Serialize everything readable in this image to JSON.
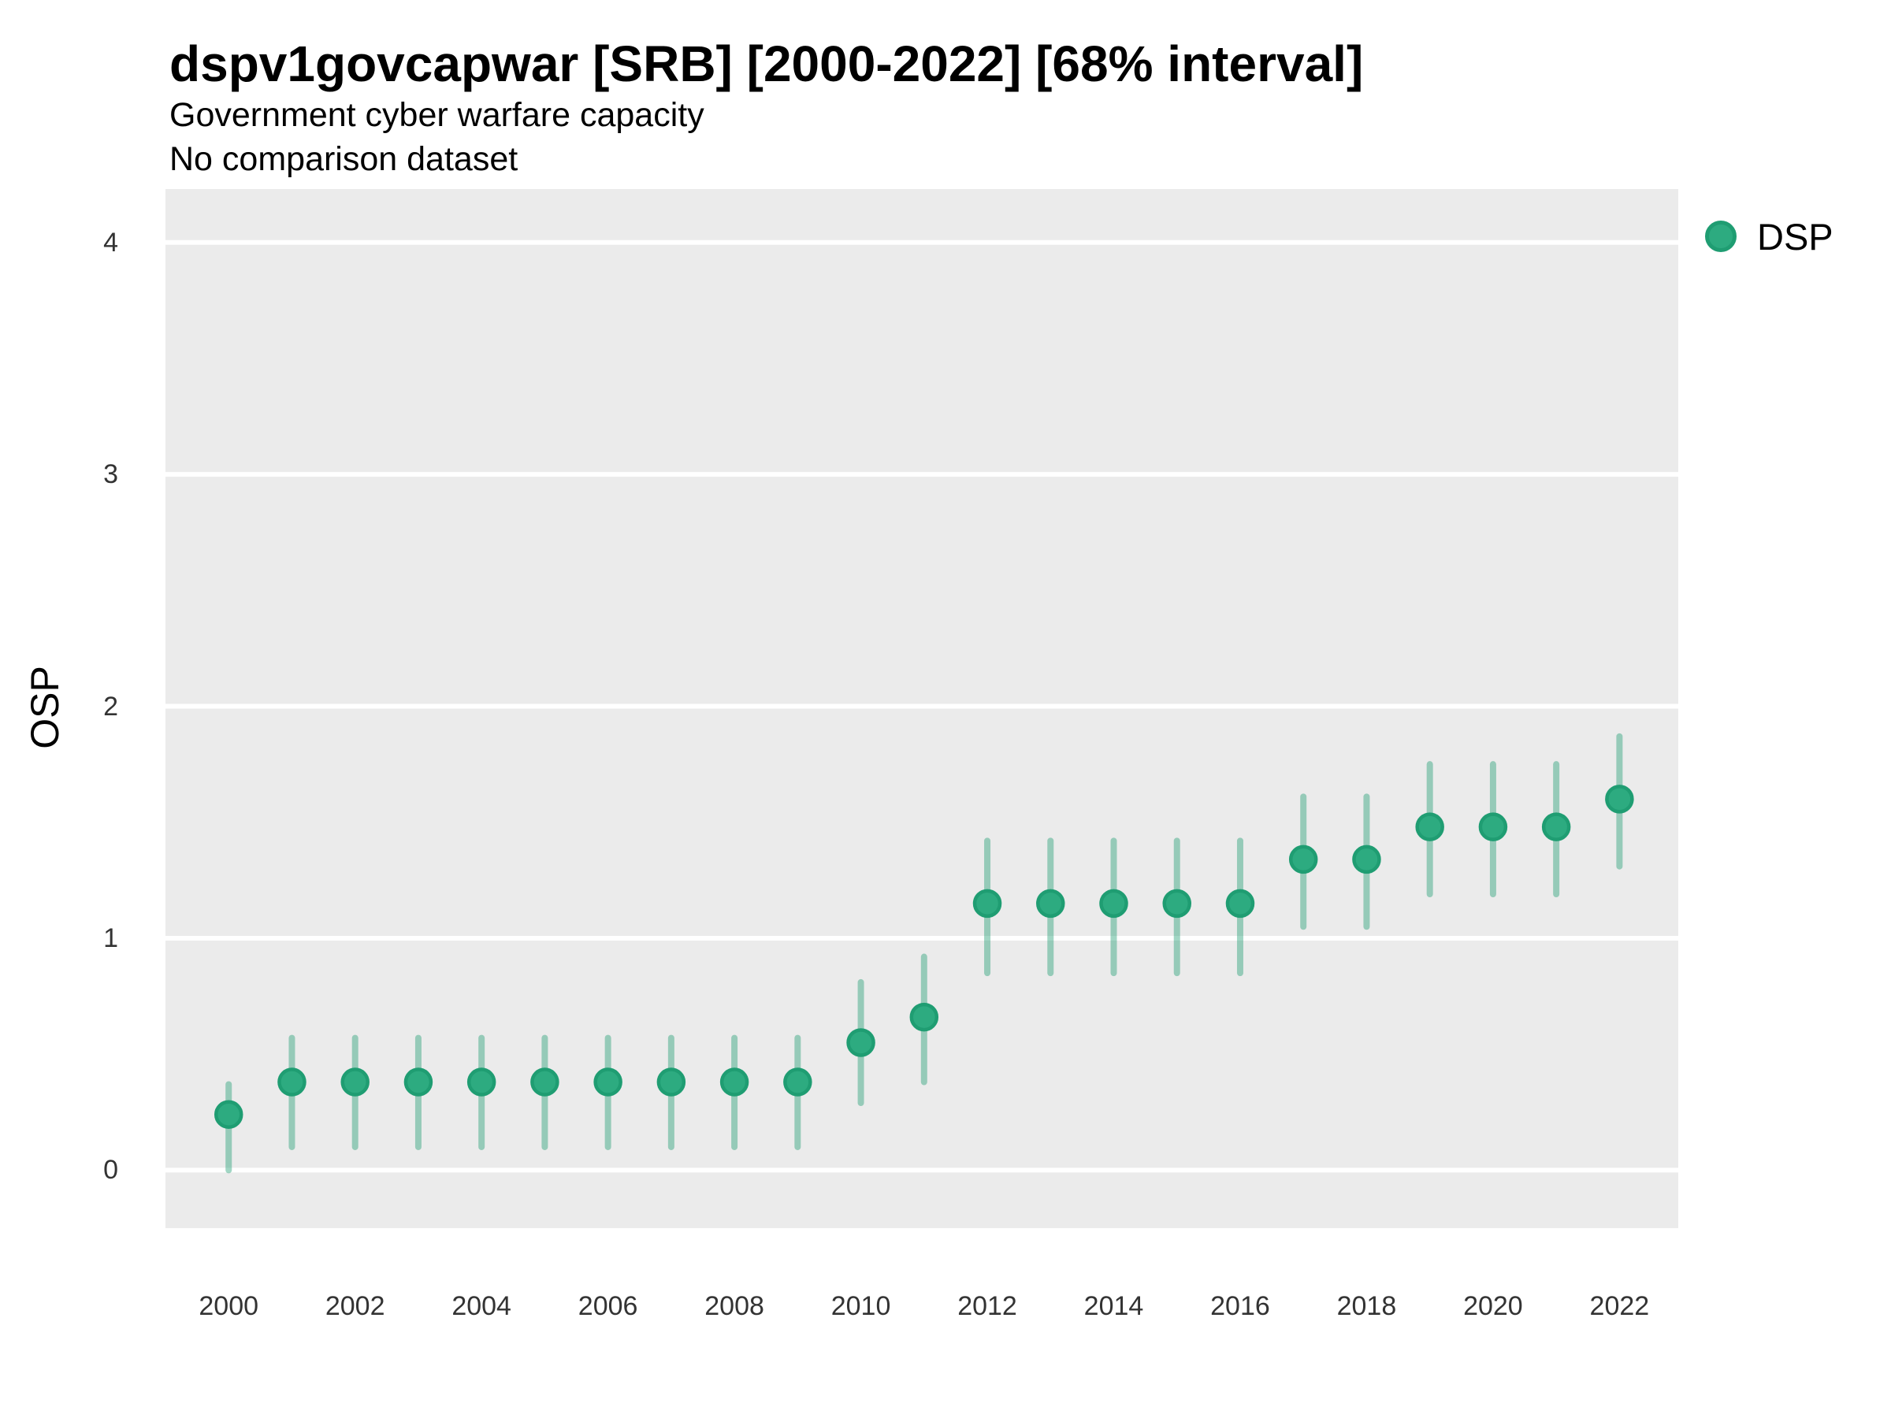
{
  "header": {
    "title": "dspv1govcapwar [SRB] [2000-2022] [68% interval]",
    "subtitle1": "Government cyber warfare capacity",
    "subtitle2": "No comparison dataset"
  },
  "legend": {
    "series_label": "DSP"
  },
  "chart_data": {
    "type": "scatter",
    "title": "dspv1govcapwar [SRB] [2000-2022] [68% interval]",
    "subtitle": [
      "Government cyber warfare capacity",
      "No comparison dataset"
    ],
    "xlabel": "",
    "ylabel": "OSP",
    "interval": "68%",
    "legend_position": "right-top",
    "grid": "horizontal-major-only",
    "panel_background": "#ebebeb",
    "gridline_color": "#ffffff",
    "point_color": "#2dab80",
    "point_stroke_color": "#1f9d72",
    "errorbar_color": "rgba(31,158,115,0.42)",
    "xlim": [
      1999.0,
      2022.93
    ],
    "ylim": [
      -0.25,
      4.23
    ],
    "x_ticks": [
      2000,
      2002,
      2004,
      2006,
      2008,
      2010,
      2012,
      2014,
      2016,
      2018,
      2020,
      2022
    ],
    "y_ticks": [
      0,
      1,
      2,
      3,
      4
    ],
    "series": [
      {
        "name": "DSP",
        "points": [
          {
            "year": 2000,
            "value": 0.24,
            "lo": 0.0,
            "hi": 0.37
          },
          {
            "year": 2001,
            "value": 0.38,
            "lo": 0.1,
            "hi": 0.57
          },
          {
            "year": 2002,
            "value": 0.38,
            "lo": 0.1,
            "hi": 0.57
          },
          {
            "year": 2003,
            "value": 0.38,
            "lo": 0.1,
            "hi": 0.57
          },
          {
            "year": 2004,
            "value": 0.38,
            "lo": 0.1,
            "hi": 0.57
          },
          {
            "year": 2005,
            "value": 0.38,
            "lo": 0.1,
            "hi": 0.57
          },
          {
            "year": 2006,
            "value": 0.38,
            "lo": 0.1,
            "hi": 0.57
          },
          {
            "year": 2007,
            "value": 0.38,
            "lo": 0.1,
            "hi": 0.57
          },
          {
            "year": 2008,
            "value": 0.38,
            "lo": 0.1,
            "hi": 0.57
          },
          {
            "year": 2009,
            "value": 0.38,
            "lo": 0.1,
            "hi": 0.57
          },
          {
            "year": 2010,
            "value": 0.55,
            "lo": 0.29,
            "hi": 0.81
          },
          {
            "year": 2011,
            "value": 0.66,
            "lo": 0.38,
            "hi": 0.92
          },
          {
            "year": 2012,
            "value": 1.15,
            "lo": 0.85,
            "hi": 1.42
          },
          {
            "year": 2013,
            "value": 1.15,
            "lo": 0.85,
            "hi": 1.42
          },
          {
            "year": 2014,
            "value": 1.15,
            "lo": 0.85,
            "hi": 1.42
          },
          {
            "year": 2015,
            "value": 1.15,
            "lo": 0.85,
            "hi": 1.42
          },
          {
            "year": 2016,
            "value": 1.15,
            "lo": 0.85,
            "hi": 1.42
          },
          {
            "year": 2017,
            "value": 1.34,
            "lo": 1.05,
            "hi": 1.61
          },
          {
            "year": 2018,
            "value": 1.34,
            "lo": 1.05,
            "hi": 1.61
          },
          {
            "year": 2019,
            "value": 1.48,
            "lo": 1.19,
            "hi": 1.75
          },
          {
            "year": 2020,
            "value": 1.48,
            "lo": 1.19,
            "hi": 1.75
          },
          {
            "year": 2021,
            "value": 1.48,
            "lo": 1.19,
            "hi": 1.75
          },
          {
            "year": 2022,
            "value": 1.6,
            "lo": 1.31,
            "hi": 1.87
          }
        ]
      }
    ]
  }
}
